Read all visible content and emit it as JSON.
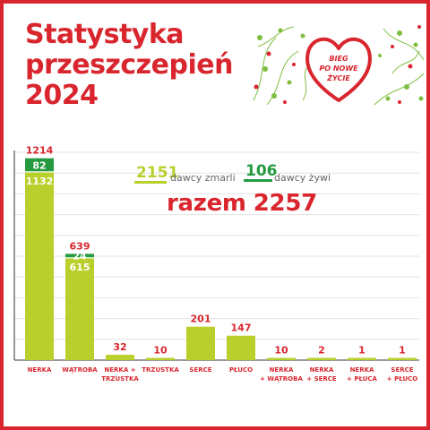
{
  "title": {
    "lines": [
      "Statystyka",
      "przeszczepień",
      "2024"
    ]
  },
  "logo": {
    "lines": [
      "BIEG",
      "PO NOWE",
      "ŻYCIE"
    ]
  },
  "legend": {
    "deceased": {
      "value": "2151",
      "label": "dawcy zmarli"
    },
    "living": {
      "value": "106",
      "label": "dawcy żywi"
    }
  },
  "total": {
    "label": "razem",
    "value": "2257"
  },
  "colors": {
    "red": "#d9262e",
    "deceased": "#b9cf2b",
    "living": "#259a3f",
    "grid": "#e2e2e2"
  },
  "chart_data": {
    "type": "bar",
    "stacked": true,
    "categories": [
      [
        "NERKA"
      ],
      [
        "WĄTROBA"
      ],
      [
        "NERKA +",
        "TRZUSTKA"
      ],
      [
        "TRZUSTKA"
      ],
      [
        "SERCE"
      ],
      [
        "PŁUCO"
      ],
      [
        "NERKA",
        "+ WĄTROBA"
      ],
      [
        "NERKA",
        "+ SERCE"
      ],
      [
        "NERKA",
        "+ PŁUCA"
      ],
      [
        "SERCE",
        "+ PŁUCO"
      ]
    ],
    "series": [
      {
        "name": "dawcy zmarli",
        "values": [
          1132,
          615,
          32,
          10,
          201,
          147,
          10,
          2,
          1,
          1
        ]
      },
      {
        "name": "dawcy żywi",
        "values": [
          82,
          24,
          0,
          0,
          0,
          0,
          0,
          0,
          0,
          0
        ]
      }
    ],
    "totals": [
      1214,
      639,
      32,
      10,
      201,
      147,
      10,
      2,
      1,
      1
    ],
    "ylim": [
      0,
      1250
    ],
    "grid": true,
    "legend_position": "top-center"
  }
}
